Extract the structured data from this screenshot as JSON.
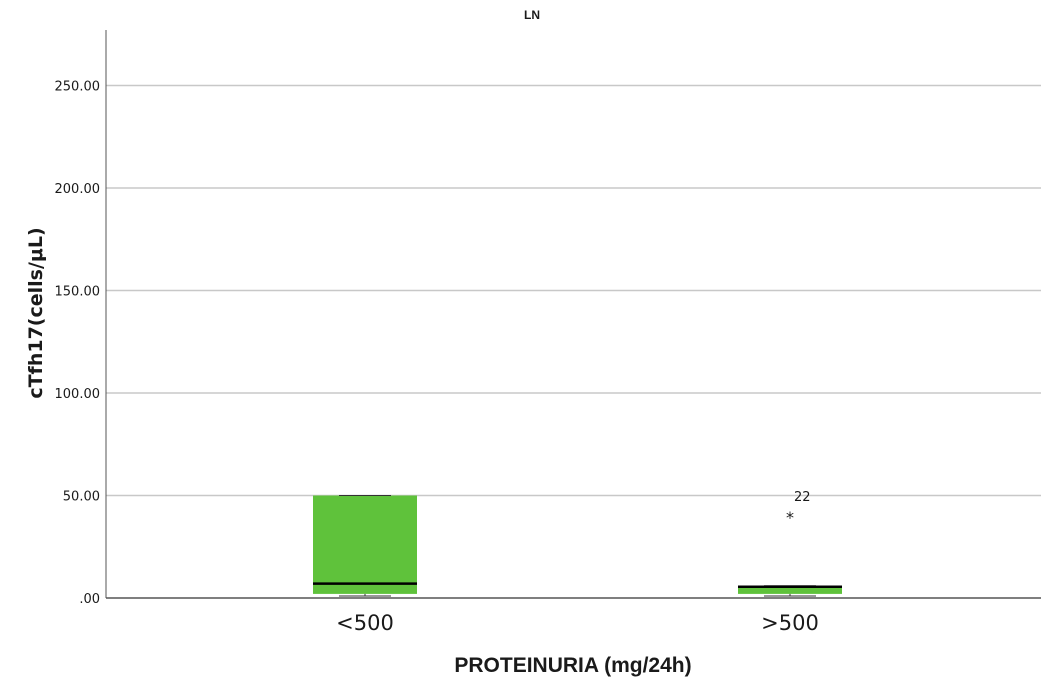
{
  "chart_data": {
    "type": "boxplot",
    "title": "LN",
    "xlabel": "PROTEINURIA (mg/24h)",
    "ylabel": "cTfh17(cells/μL)",
    "ylim": [
      0,
      275
    ],
    "yticks": [
      ".00",
      "50.00",
      "100.00",
      "150.00",
      "200.00",
      "250.00"
    ],
    "ytick_values": [
      0,
      50,
      100,
      150,
      200,
      250
    ],
    "grid": true,
    "box_color": "#5fc23b",
    "categories": [
      "<500",
      ">500"
    ],
    "boxes": [
      {
        "category": "<500",
        "min": 1,
        "q1": 2,
        "median": 7,
        "q3": 50,
        "max": 50,
        "outliers": []
      },
      {
        "category": ">500",
        "min": 1,
        "q1": 2,
        "median": 5.5,
        "q3": 6,
        "max": 6,
        "outliers": [
          {
            "value": 42,
            "label": "22",
            "marker": "*"
          }
        ]
      }
    ]
  }
}
